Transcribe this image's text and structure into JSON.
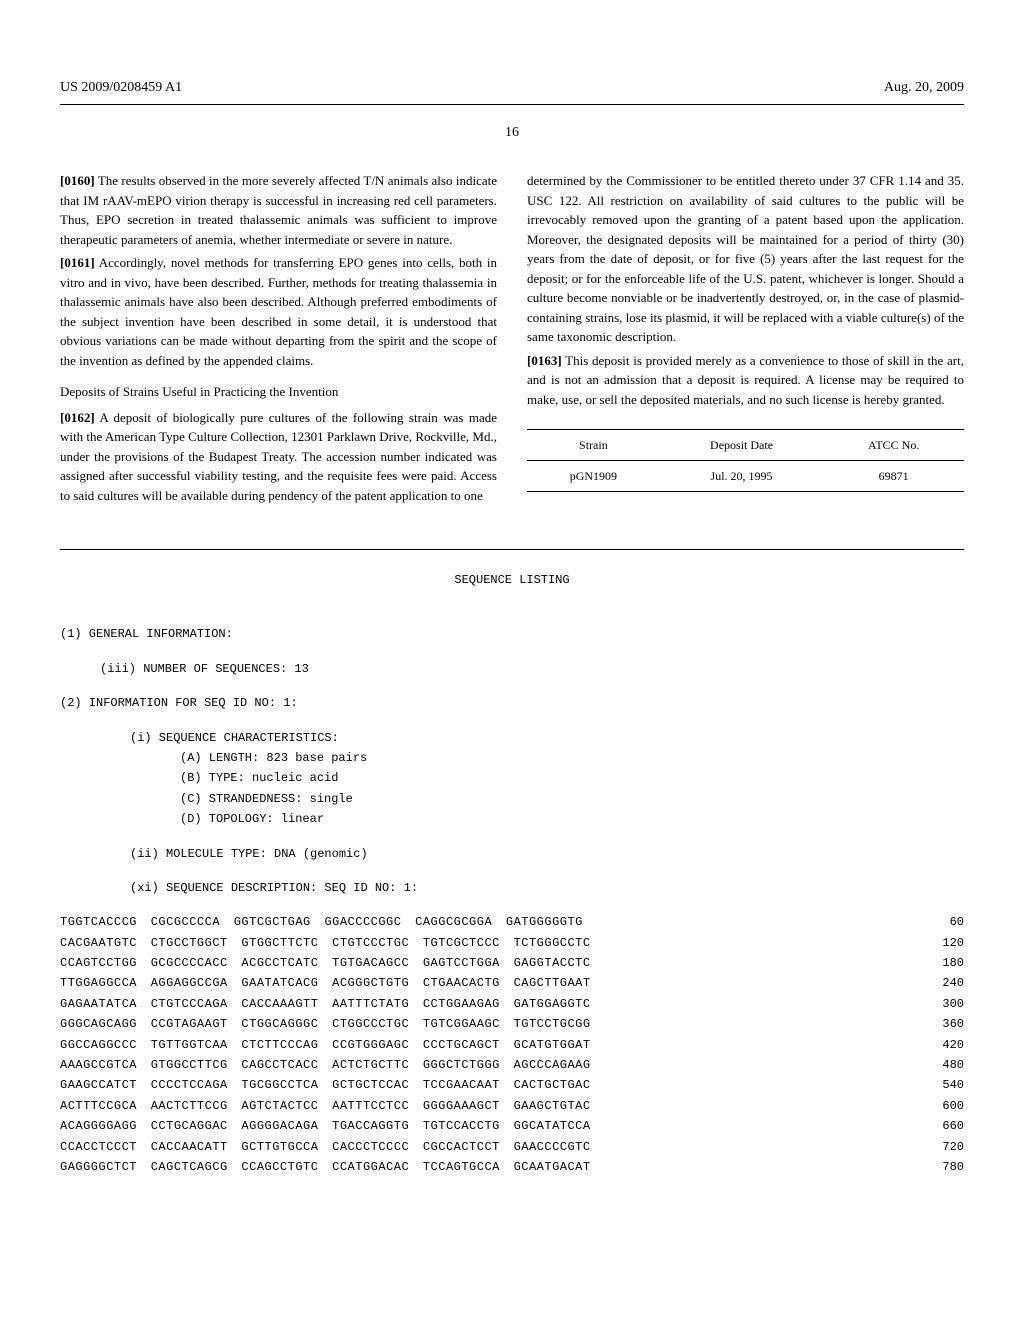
{
  "header": {
    "left": "US 2009/0208459 A1",
    "right": "Aug. 20, 2009"
  },
  "page_number": "16",
  "left_column": {
    "para_0160_num": "[0160]",
    "para_0160": "   The results observed in the more severely affected T/N animals also indicate that IM rAAV-mEPO virion therapy is successful in increasing red cell parameters. Thus, EPO secretion in treated thalassemic animals was sufficient to improve therapeutic parameters of anemia, whether intermediate or severe in nature.",
    "para_0161_num": "[0161]",
    "para_0161": "   Accordingly, novel methods for transferring EPO genes into cells, both in vitro and in vivo, have been described. Further, methods for treating thalassemia in thalassemic animals have also been described. Although preferred embodiments of the subject invention have been described in some detail, it is understood that obvious variations can be made without departing from the spirit and the scope of the invention as defined by the appended claims.",
    "heading": "Deposits of Strains Useful in Practicing the Invention",
    "para_0162_num": "[0162]",
    "para_0162": "   A deposit of biologically pure cultures of the following strain was made with the American Type Culture Collection, 12301 Parklawn Drive, Rockville, Md., under the provisions of the Budapest Treaty. The accession number indicated was assigned after successful viability testing, and the requisite fees were paid. Access to said cultures will be available during pendency of the patent application to one"
  },
  "right_column": {
    "para_cont": "determined by the Commissioner to be entitled thereto under 37 CFR 1.14 and 35. USC 122. All restriction on availability of said cultures to the public will be irrevocably removed upon the granting of a patent based upon the application. Moreover, the designated deposits will be maintained for a period of thirty (30) years from the date of deposit, or for five (5) years after the last request for the deposit; or for the enforceable life of the U.S. patent, whichever is longer. Should a culture become nonviable or be inadvertently destroyed, or, in the case of plasmid-containing strains, lose its plasmid, it will be replaced with a viable culture(s) of the same taxonomic description.",
    "para_0163_num": "[0163]",
    "para_0163": "   This deposit is provided merely as a convenience to those of skill in the art, and is not an admission that a deposit is required. A license may be required to make, use, or sell the deposited materials, and no such license is hereby granted."
  },
  "deposit_table": {
    "headers": [
      "Strain",
      "Deposit Date",
      "ATCC No."
    ],
    "row": [
      "pGN1909",
      "Jul. 20, 1995",
      "69871"
    ]
  },
  "sequence": {
    "title": "SEQUENCE LISTING",
    "general_info": "(1) GENERAL INFORMATION:",
    "num_seq": "(iii) NUMBER OF SEQUENCES: 13",
    "seq_info": "(2) INFORMATION FOR SEQ ID NO: 1:",
    "characteristics": "(i) SEQUENCE CHARACTERISTICS:",
    "char_a": "(A) LENGTH: 823 base pairs",
    "char_b": "(B) TYPE: nucleic acid",
    "char_c": "(C) STRANDEDNESS: single",
    "char_d": "(D) TOPOLOGY: linear",
    "mol_type": "(ii) MOLECULE TYPE: DNA (genomic)",
    "seq_desc": "(xi) SEQUENCE DESCRIPTION: SEQ ID NO: 1:",
    "rows": [
      {
        "seq": "TGGTCACCCG CGCGCCCCA GGTCGCTGAG GGACCCCGGC CAGGCGCGGA GATGGGGGTG",
        "num": "60"
      },
      {
        "seq": "CACGAATGTC CTGCCTGGCT GTGGCTTCTC CTGTCCCTGC TGTCGCTCCC TCTGGGCCTC",
        "num": "120"
      },
      {
        "seq": "CCAGTCCTGG GCGCCCCACC ACGCCTCATC TGTGACAGCC GAGTCCTGGA GAGGTACCTC",
        "num": "180"
      },
      {
        "seq": "TTGGAGGCCA AGGAGGCCGA GAATATCACG ACGGGCTGTG CTGAACACTG CAGCTTGAAT",
        "num": "240"
      },
      {
        "seq": "GAGAATATCA CTGTCCCAGA CACCAAAGTT AATTTCTATG CCTGGAAGAG GATGGAGGTC",
        "num": "300"
      },
      {
        "seq": "GGGCAGCAGG CCGTAGAAGT CTGGCAGGGC CTGGCCCTGC TGTCGGAAGC TGTCCTGCGG",
        "num": "360"
      },
      {
        "seq": "GGCCAGGCCC TGTTGGTCAA CTCTTCCCAG CCGTGGGAGC CCCTGCAGCT GCATGTGGAT",
        "num": "420"
      },
      {
        "seq": "AAAGCCGTCA GTGGCCTTCG CAGCCTCACC ACTCTGCTTC GGGCTCTGGG AGCCCAGAAG",
        "num": "480"
      },
      {
        "seq": "GAAGCCATCT CCCCTCCAGA TGCGGCCTCA GCTGCTCCAC TCCGAACAAT CACTGCTGAC",
        "num": "540"
      },
      {
        "seq": "ACTTTCCGCA AACTCTTCCG AGTCTACTCC AATTTCCTCC GGGGAAAGCT GAAGCTGTAC",
        "num": "600"
      },
      {
        "seq": "ACAGGGGAGG CCTGCAGGAC AGGGGACAGA TGACCAGGTG TGTCCACCTG GGCATATCCA",
        "num": "660"
      },
      {
        "seq": "CCACCTCCCT CACCAACATT GCTTGTGCCA CACCCTCCCC CGCCACTCCT GAACCCCGTC",
        "num": "720"
      },
      {
        "seq": "GAGGGGCTCT CAGCTCAGCG CCAGCCTGTC CCATGGACAC TCCAGTGCCA GCAATGACAT",
        "num": "780"
      }
    ]
  }
}
